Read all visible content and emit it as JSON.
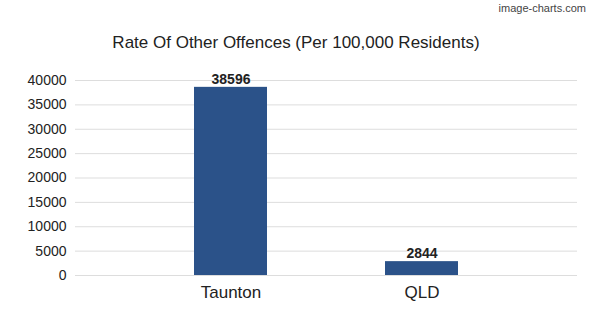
{
  "chart_data": {
    "type": "bar",
    "title": "Rate Of Other Offences (Per 100,000 Residents)",
    "annotations": [
      "image-charts.com"
    ],
    "categories": [
      "Taunton",
      "QLD"
    ],
    "values": [
      38596,
      2844
    ],
    "color": "#2b5289",
    "ylim": [
      0,
      40000
    ],
    "yticks": [
      0,
      5000,
      10000,
      15000,
      20000,
      25000,
      30000,
      35000,
      40000
    ],
    "grid": true,
    "data_labels": true
  }
}
